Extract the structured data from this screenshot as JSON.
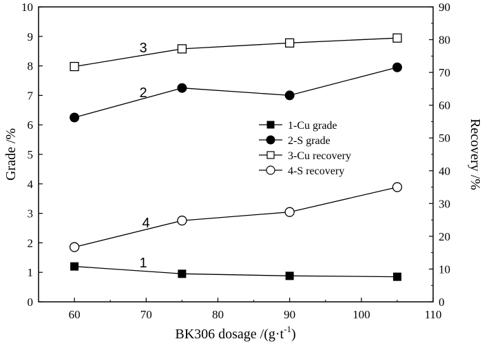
{
  "chart_data": {
    "type": "line",
    "x": [
      60,
      75,
      90,
      105
    ],
    "xlabel": "BK306 dosage /(g·t",
    "xlabel_sup": "-1",
    "xlabel_end": ")",
    "ylabel_left": "Grade /%",
    "ylabel_right": "Recovery /%",
    "xlim": [
      55,
      110
    ],
    "ylim_left": [
      0,
      10
    ],
    "ylim_right": [
      0,
      90
    ],
    "xticks": [
      "60",
      "70",
      "80",
      "90",
      "100",
      "110"
    ],
    "yticks_left": [
      "0",
      "1",
      "2",
      "3",
      "4",
      "5",
      "6",
      "7",
      "8",
      "9",
      "10"
    ],
    "yticks_right": [
      "0",
      "10",
      "20",
      "30",
      "40",
      "50",
      "60",
      "70",
      "80",
      "90"
    ],
    "grid": false,
    "legend_position": "center-right",
    "series": [
      {
        "name": "1-Cu grade",
        "curve_label": "1",
        "axis": "left",
        "marker": "filled-square",
        "values": [
          1.2,
          0.95,
          0.88,
          0.85
        ]
      },
      {
        "name": "2-S grade",
        "curve_label": "2",
        "axis": "left",
        "marker": "filled-circle",
        "values": [
          6.25,
          7.25,
          7.0,
          7.95
        ]
      },
      {
        "name": "3-Cu recovery",
        "curve_label": "3",
        "axis": "right",
        "marker": "open-square",
        "values": [
          71.8,
          77.2,
          79.0,
          80.5
        ]
      },
      {
        "name": "4-S recovery",
        "curve_label": "4",
        "axis": "right",
        "marker": "open-circle",
        "values": [
          16.7,
          24.8,
          27.4,
          35.0
        ]
      }
    ]
  }
}
